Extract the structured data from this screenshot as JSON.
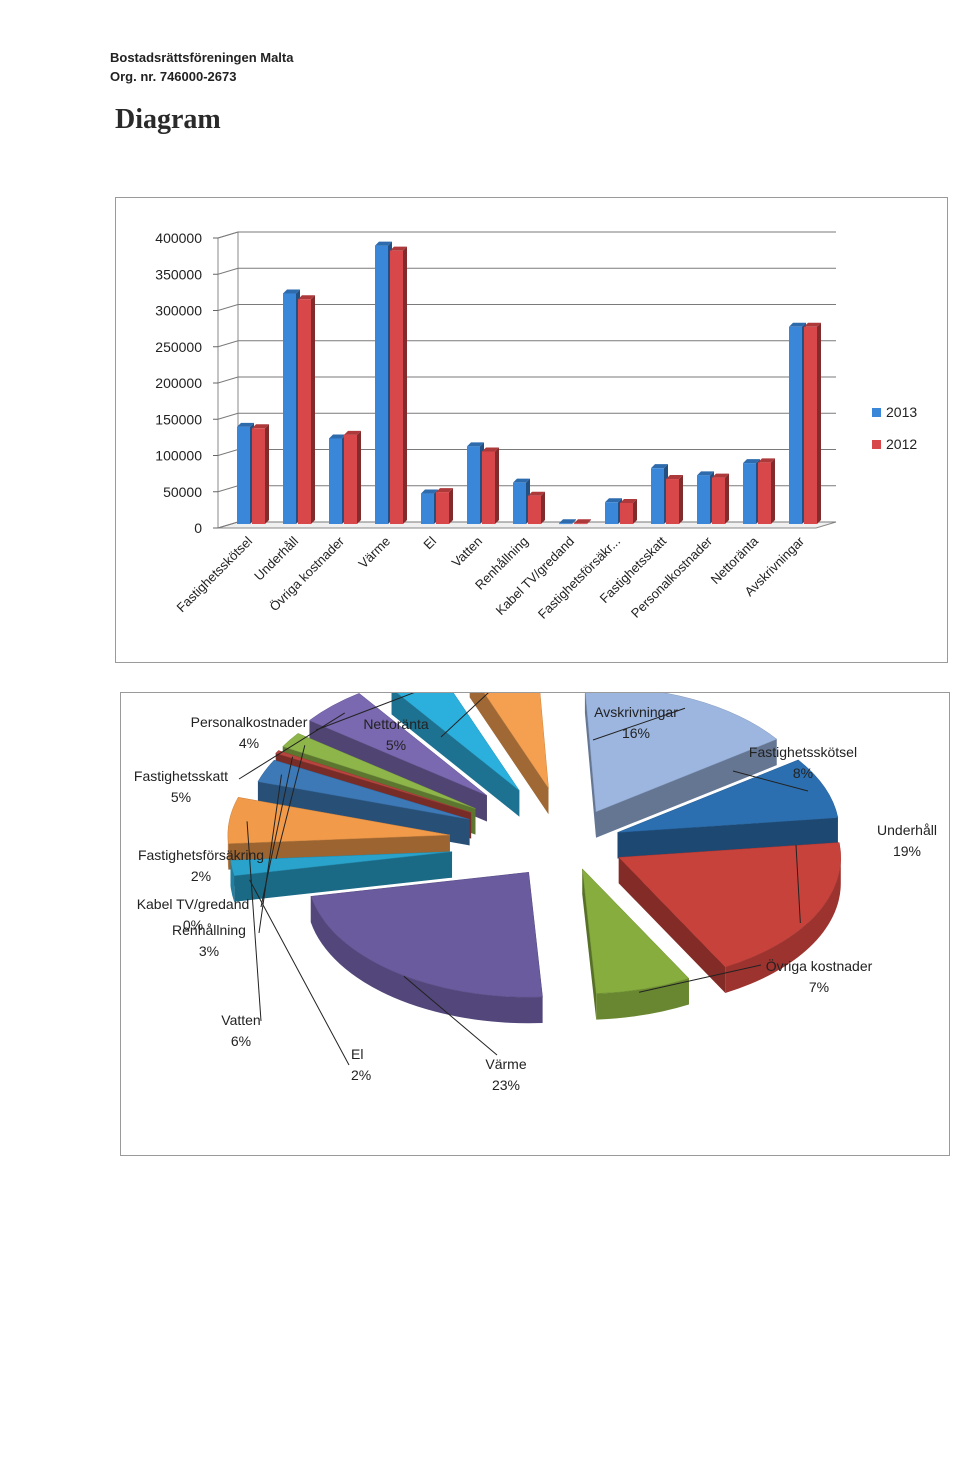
{
  "header": {
    "org_name": "Bostadsrättsföreningen Malta",
    "org_nr": "Org. nr. 746000-2673",
    "title": "Diagram"
  },
  "chart_data": [
    {
      "type": "bar",
      "title": "",
      "xlabel": "",
      "ylabel": "",
      "ylim": [
        0,
        400000
      ],
      "yticks": [
        0,
        50000,
        100000,
        150000,
        200000,
        250000,
        300000,
        350000,
        400000
      ],
      "grid": true,
      "legend_position": "right",
      "categories": [
        "Fastighetsskötsel",
        "Underhåll",
        "Övriga kostnader",
        "Värme",
        "El",
        "Vatten",
        "Renhållning",
        "Kabel TV/gredand",
        "Fastighetsförsäkr...",
        "Fastighetsskatt",
        "Personalkostnader",
        "Nettoränta",
        "Avskrivningar"
      ],
      "series": [
        {
          "name": "2013",
          "color": "#3a86d8",
          "values": [
            134000,
            318000,
            118000,
            384000,
            42000,
            107000,
            57000,
            1000,
            30000,
            77000,
            67000,
            84000,
            272000
          ]
        },
        {
          "name": "2012",
          "color": "#d8474a",
          "values": [
            132000,
            310000,
            123000,
            377000,
            44000,
            100000,
            39000,
            1000,
            29000,
            62000,
            64000,
            85000,
            272000
          ]
        }
      ]
    },
    {
      "type": "pie",
      "title": "",
      "slices": [
        {
          "label": "Avskrivningar",
          "percent": "16%",
          "value": 16,
          "color": "#9cb6e0"
        },
        {
          "label": "Fastighetsskötsel",
          "percent": "8%",
          "value": 8,
          "color": "#2c6fb0"
        },
        {
          "label": "Underhåll",
          "percent": "19%",
          "value": 19,
          "color": "#c8423c"
        },
        {
          "label": "Övriga kostnader",
          "percent": "7%",
          "value": 7,
          "color": "#86ad3e"
        },
        {
          "label": "Värme",
          "percent": "23%",
          "value": 23,
          "color": "#6a5a9e"
        },
        {
          "label": "El",
          "percent": "2%",
          "value": 2,
          "color": "#2aa3cc"
        },
        {
          "label": "Vatten",
          "percent": "6%",
          "value": 6,
          "color": "#f09a4a"
        },
        {
          "label": "Renhållning",
          "percent": "3%",
          "value": 3,
          "color": "#3d79b6"
        },
        {
          "label": "Kabel TV/gredand",
          "percent": "0%",
          "value": 0.4,
          "color": "#b8443e"
        },
        {
          "label": "Fastighetsförsäkring",
          "percent": "2%",
          "value": 2,
          "color": "#8eb54a"
        },
        {
          "label": "Fastighetsskatt",
          "percent": "5%",
          "value": 5,
          "color": "#7a68b0"
        },
        {
          "label": "Personalkostnader",
          "percent": "4%",
          "value": 4,
          "color": "#2bb0de"
        },
        {
          "label": "Nettoränta",
          "percent": "5%",
          "value": 5,
          "color": "#f4a050"
        }
      ]
    }
  ]
}
